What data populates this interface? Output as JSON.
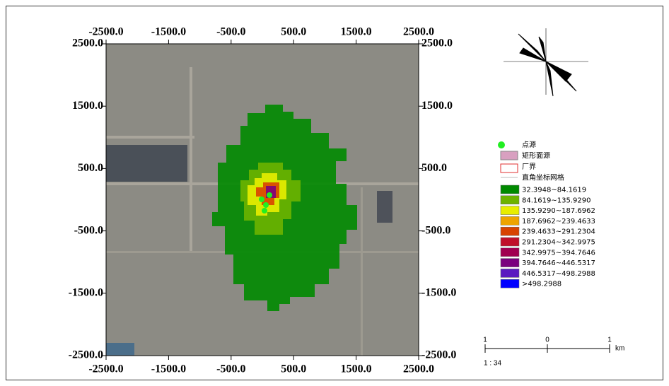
{
  "map": {
    "xlim": [
      -2500,
      2500
    ],
    "ylim": [
      -2500,
      2500
    ],
    "xticks": [
      {
        "value": -2500,
        "label": "-2500.0"
      },
      {
        "value": -1500,
        "label": "-1500.0"
      },
      {
        "value": -500,
        "label": "-500.0"
      },
      {
        "value": 500,
        "label": "500.0"
      },
      {
        "value": 1500,
        "label": "1500.0"
      },
      {
        "value": 2500,
        "label": "2500.0"
      }
    ],
    "yticks": [
      {
        "value": 2500,
        "label": "2500.0"
      },
      {
        "value": 1500,
        "label": "1500.0"
      },
      {
        "value": 500,
        "label": "500.0"
      },
      {
        "value": -500,
        "label": "-500.0"
      },
      {
        "value": -1500,
        "label": "-1500.0"
      },
      {
        "value": -2500,
        "label": "-2500.0"
      }
    ],
    "legend": {
      "symbols": [
        "点源",
        "矩形面源",
        "厂界",
        "直角坐标网格"
      ],
      "classes": [
        {
          "label": "32.3948~84.1619",
          "color": "#008a00"
        },
        {
          "label": "84.1619~135.9290",
          "color": "#6db300"
        },
        {
          "label": "135.9290~187.6962",
          "color": "#e8ee00"
        },
        {
          "label": "187.6962~239.4633",
          "color": "#eea400"
        },
        {
          "label": "239.4633~291.2304",
          "color": "#d84300"
        },
        {
          "label": "291.2304~342.9975",
          "color": "#c0102a"
        },
        {
          "label": "342.9975~394.7646",
          "color": "#a00050"
        },
        {
          "label": "394.7646~446.5317",
          "color": "#7a007e"
        },
        {
          "label": "446.5317~498.2988",
          "color": "#5a1ac0"
        },
        {
          "label": ">498.2988",
          "color": "#0000ff"
        }
      ]
    },
    "scale_bar": {
      "labels": [
        "1",
        "0",
        "1"
      ],
      "unit": "km",
      "ratio": "1 : 34"
    }
  }
}
